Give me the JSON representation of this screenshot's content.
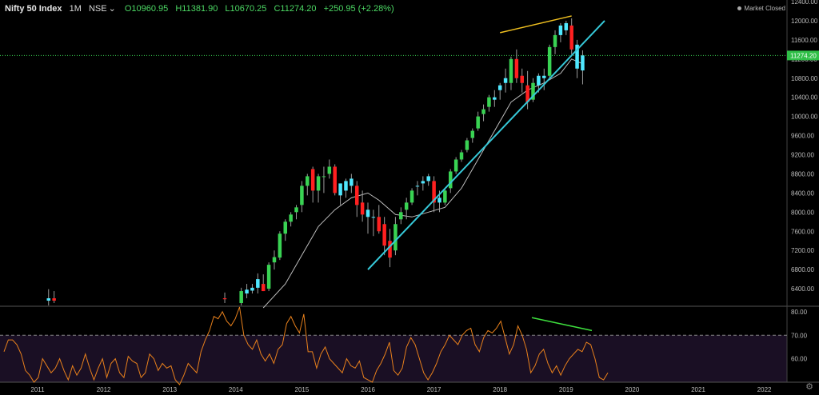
{
  "header": {
    "symbol": "Nifty 50 Index",
    "interval": "1M",
    "exchange": "NSE",
    "open": "O10960.95",
    "high": "H11381.90",
    "low": "L10670.25",
    "close": "C11274.20",
    "change": "+250.95 (+2.28%)"
  },
  "status": {
    "market": "Market Closed"
  },
  "price_tag": "11274.20",
  "colors": {
    "up": "#39d353",
    "down": "#ff2020",
    "highlight": "#4fe8ff",
    "trendline": "#36c8d8",
    "topline": "#f0c020",
    "ma": "#bdbdbd",
    "rsi": "#e8801c",
    "rsi_bg": "#1a0f24",
    "divergence": "#3ee03e"
  },
  "icons": {
    "settings": "gear-icon",
    "chevron": "chevron-down-icon"
  },
  "chart_data": [
    {
      "type": "candlestick",
      "title": "Nifty 50 Index, 1M, NSE",
      "ylim": [
        6000,
        12400
      ],
      "y_ticks": [
        "12400.00",
        "12000.00",
        "11600.00",
        "11200.00",
        "10800.00",
        "10400.00",
        "10000.00",
        "9600.00",
        "9200.00",
        "8800.00",
        "8400.00",
        "8000.00",
        "7600.00",
        "7200.00",
        "6800.00",
        "6400.00"
      ],
      "x_ticks": [
        "2011",
        "2012",
        "2013",
        "2014",
        "2015",
        "2016",
        "2017",
        "2018",
        "2019",
        "2020",
        "2021",
        "2022"
      ],
      "candles": [
        {
          "t": "2011-03",
          "o": 6150,
          "h": 6390,
          "l": 6050,
          "c": 6200,
          "hi": true
        },
        {
          "t": "2011-04",
          "o": 6200,
          "h": 6350,
          "l": 6100,
          "c": 6150
        },
        {
          "t": "2013-11",
          "o": 6200,
          "h": 6320,
          "l": 6100,
          "c": 6180
        },
        {
          "t": "2014-02",
          "o": 6100,
          "h": 6420,
          "l": 6050,
          "c": 6350
        },
        {
          "t": "2014-03",
          "o": 6300,
          "h": 6500,
          "l": 6200,
          "c": 6380,
          "hi": true
        },
        {
          "t": "2014-04",
          "o": 6360,
          "h": 6500,
          "l": 6300,
          "c": 6420,
          "hi": true
        },
        {
          "t": "2014-05",
          "o": 6420,
          "h": 6720,
          "l": 6300,
          "c": 6600,
          "hi": true
        },
        {
          "t": "2014-06",
          "o": 6500,
          "h": 6700,
          "l": 6350,
          "c": 6350
        },
        {
          "t": "2014-07",
          "o": 6400,
          "h": 6950,
          "l": 6350,
          "c": 6900
        },
        {
          "t": "2014-08",
          "o": 6950,
          "h": 7200,
          "l": 6800,
          "c": 7060
        },
        {
          "t": "2014-09",
          "o": 7050,
          "h": 7600,
          "l": 7000,
          "c": 7550
        },
        {
          "t": "2014-10",
          "o": 7550,
          "h": 7850,
          "l": 7400,
          "c": 7800
        },
        {
          "t": "2014-11",
          "o": 7800,
          "h": 8000,
          "l": 7700,
          "c": 7950
        },
        {
          "t": "2014-12",
          "o": 8000,
          "h": 8150,
          "l": 7850,
          "c": 8100
        },
        {
          "t": "2015-01",
          "o": 8150,
          "h": 8650,
          "l": 8000,
          "c": 8550
        },
        {
          "t": "2015-02",
          "o": 8550,
          "h": 8800,
          "l": 8350,
          "c": 8750
        },
        {
          "t": "2015-03",
          "o": 8900,
          "h": 8950,
          "l": 8200,
          "c": 8450
        },
        {
          "t": "2015-04",
          "o": 8450,
          "h": 8800,
          "l": 8200,
          "c": 8750
        },
        {
          "t": "2015-05",
          "o": 8750,
          "h": 8950,
          "l": 8400,
          "c": 8750
        },
        {
          "t": "2015-06",
          "o": 8800,
          "h": 9100,
          "l": 8700,
          "c": 8950
        },
        {
          "t": "2015-07",
          "o": 8950,
          "h": 9000,
          "l": 8350,
          "c": 8400
        },
        {
          "t": "2015-08",
          "o": 8350,
          "h": 8600,
          "l": 8150,
          "c": 8600,
          "hi": true
        },
        {
          "t": "2015-09",
          "o": 8450,
          "h": 8700,
          "l": 8300,
          "c": 8650,
          "hi": true
        },
        {
          "t": "2015-10",
          "o": 8700,
          "h": 8800,
          "l": 8400,
          "c": 8550,
          "hi": true
        },
        {
          "t": "2015-11",
          "o": 8550,
          "h": 8650,
          "l": 7900,
          "c": 8150
        },
        {
          "t": "2015-12",
          "o": 8200,
          "h": 8450,
          "l": 7800,
          "c": 7950
        },
        {
          "t": "2016-01",
          "o": 8050,
          "h": 8200,
          "l": 7550,
          "c": 7900,
          "hi": true
        },
        {
          "t": "2016-02",
          "o": 7900,
          "h": 8050,
          "l": 7500,
          "c": 7900,
          "hi": true
        },
        {
          "t": "2016-03",
          "o": 7900,
          "h": 8150,
          "l": 7550,
          "c": 7600
        },
        {
          "t": "2016-04",
          "o": 7750,
          "h": 7900,
          "l": 7100,
          "c": 7300
        },
        {
          "t": "2016-05",
          "o": 7400,
          "h": 7650,
          "l": 6850,
          "c": 7050
        },
        {
          "t": "2016-06",
          "o": 7200,
          "h": 7900,
          "l": 7100,
          "c": 7750
        },
        {
          "t": "2016-07",
          "o": 7850,
          "h": 8100,
          "l": 7750,
          "c": 8000
        },
        {
          "t": "2016-08",
          "o": 8050,
          "h": 8300,
          "l": 7850,
          "c": 8200
        },
        {
          "t": "2016-09",
          "o": 8200,
          "h": 8500,
          "l": 8150,
          "c": 8450
        },
        {
          "t": "2016-10",
          "o": 8550,
          "h": 8650,
          "l": 8350,
          "c": 8550,
          "hi": true
        },
        {
          "t": "2016-11",
          "o": 8600,
          "h": 8750,
          "l": 8450,
          "c": 8650,
          "hi": true
        },
        {
          "t": "2016-12",
          "o": 8650,
          "h": 8800,
          "l": 8550,
          "c": 8750,
          "hi": true
        },
        {
          "t": "2017-01",
          "o": 8650,
          "h": 8750,
          "l": 8000,
          "c": 8200
        },
        {
          "t": "2017-02",
          "o": 8300,
          "h": 8450,
          "l": 8000,
          "c": 8200,
          "hi": true
        },
        {
          "t": "2017-03",
          "o": 8200,
          "h": 8500,
          "l": 8150,
          "c": 8450
        },
        {
          "t": "2017-04",
          "o": 8500,
          "h": 8900,
          "l": 8400,
          "c": 8850
        },
        {
          "t": "2017-05",
          "o": 8850,
          "h": 9150,
          "l": 8800,
          "c": 9100
        },
        {
          "t": "2017-06",
          "o": 9100,
          "h": 9300,
          "l": 9050,
          "c": 9250
        },
        {
          "t": "2017-07",
          "o": 9300,
          "h": 9550,
          "l": 9250,
          "c": 9500
        },
        {
          "t": "2017-08",
          "o": 9550,
          "h": 9750,
          "l": 9450,
          "c": 9700
        },
        {
          "t": "2017-09",
          "o": 9750,
          "h": 10100,
          "l": 9700,
          "c": 10000
        },
        {
          "t": "2017-10",
          "o": 10050,
          "h": 10250,
          "l": 9900,
          "c": 10150
        },
        {
          "t": "2017-11",
          "o": 10200,
          "h": 10450,
          "l": 10100,
          "c": 10400
        },
        {
          "t": "2017-12",
          "o": 10400,
          "h": 10550,
          "l": 10200,
          "c": 10350,
          "hi": true
        },
        {
          "t": "2018-01",
          "o": 10550,
          "h": 10700,
          "l": 10350,
          "c": 10650,
          "hi": true
        },
        {
          "t": "2018-02",
          "o": 10800,
          "h": 11000,
          "l": 10500,
          "c": 10700,
          "hi": true
        },
        {
          "t": "2018-03",
          "o": 10700,
          "h": 11250,
          "l": 10550,
          "c": 11200
        },
        {
          "t": "2018-04",
          "o": 11200,
          "h": 11400,
          "l": 10700,
          "c": 10800
        },
        {
          "t": "2018-05",
          "o": 10850,
          "h": 11000,
          "l": 10500,
          "c": 10700
        },
        {
          "t": "2018-06",
          "o": 10650,
          "h": 10950,
          "l": 10150,
          "c": 10300
        },
        {
          "t": "2018-07",
          "o": 10350,
          "h": 10800,
          "l": 10300,
          "c": 10700
        },
        {
          "t": "2018-08",
          "o": 10650,
          "h": 10900,
          "l": 10500,
          "c": 10850,
          "hi": true
        },
        {
          "t": "2018-09",
          "o": 10800,
          "h": 11000,
          "l": 10550,
          "c": 10850,
          "hi": true
        },
        {
          "t": "2018-10",
          "o": 10850,
          "h": 11500,
          "l": 10800,
          "c": 11450
        },
        {
          "t": "2018-11",
          "o": 11450,
          "h": 11800,
          "l": 11300,
          "c": 11700
        },
        {
          "t": "2018-12",
          "o": 11700,
          "h": 11950,
          "l": 11550,
          "c": 11900,
          "hi": true
        },
        {
          "t": "2019-01",
          "o": 11800,
          "h": 12000,
          "l": 11700,
          "c": 11950,
          "hi": true
        },
        {
          "t": "2019-02",
          "o": 11900,
          "h": 12050,
          "l": 11300,
          "c": 11400
        },
        {
          "t": "2019-03",
          "o": 11500,
          "h": 11600,
          "l": 10800,
          "c": 11000,
          "hi": true
        },
        {
          "t": "2019-04",
          "o": 10960.95,
          "h": 11381.9,
          "l": 10670.25,
          "c": 11274.2,
          "hi": true
        }
      ],
      "moving_average": [
        [
          "2014-06",
          6000
        ],
        [
          "2014-10",
          6500
        ],
        [
          "2015-01",
          7100
        ],
        [
          "2015-04",
          7700
        ],
        [
          "2015-07",
          8050
        ],
        [
          "2015-10",
          8300
        ],
        [
          "2016-01",
          8400
        ],
        [
          "2016-03",
          8250
        ],
        [
          "2016-06",
          7950
        ],
        [
          "2016-09",
          7900
        ],
        [
          "2016-12",
          8000
        ],
        [
          "2017-03",
          8100
        ],
        [
          "2017-06",
          8500
        ],
        [
          "2017-09",
          9100
        ],
        [
          "2017-12",
          9700
        ],
        [
          "2018-03",
          10300
        ],
        [
          "2018-06",
          10550
        ],
        [
          "2018-09",
          10700
        ],
        [
          "2018-12",
          10900
        ],
        [
          "2019-02",
          11200
        ],
        [
          "2019-04",
          11100
        ]
      ],
      "trendline": {
        "from": [
          "2016-01",
          6800
        ],
        "to": [
          "2019-08",
          12000
        ]
      },
      "top_line": {
        "from": [
          "2018-01",
          11750
        ],
        "to": [
          "2019-02",
          12100
        ]
      }
    },
    {
      "type": "line",
      "title": "RSI",
      "ylim": [
        50,
        82
      ],
      "y_ticks": [
        "80.00",
        "70.00",
        "60.00"
      ],
      "reference": 70,
      "values": [
        63,
        68,
        68,
        66,
        62,
        55,
        53,
        50,
        52,
        60,
        57,
        54,
        56,
        60,
        55,
        51,
        57,
        53,
        56,
        62,
        56,
        51,
        56,
        60,
        52,
        58,
        60,
        54,
        52,
        61,
        59,
        58,
        52,
        54,
        62,
        60,
        55,
        58,
        56,
        57,
        51,
        49,
        53,
        58,
        56,
        54,
        63,
        68,
        72,
        78,
        77,
        80,
        76,
        74,
        77,
        82,
        70,
        66,
        64,
        68,
        62,
        59,
        62,
        58,
        64,
        66,
        75,
        78,
        74,
        71,
        79,
        63,
        63,
        56,
        62,
        65,
        60,
        58,
        56,
        54,
        60,
        57,
        56,
        59,
        52,
        51,
        50,
        55,
        58,
        62,
        67,
        55,
        53,
        56,
        65,
        69,
        66,
        60,
        54,
        51,
        54,
        58,
        63,
        66,
        70,
        68,
        66,
        70,
        72,
        73,
        66,
        63,
        69,
        72,
        71,
        73,
        76,
        69,
        62,
        66,
        74,
        70,
        64,
        54,
        57,
        62,
        64,
        58,
        54,
        57,
        53,
        57,
        60,
        62,
        64,
        63,
        67,
        66,
        60,
        52,
        51,
        54
      ]
    }
  ]
}
